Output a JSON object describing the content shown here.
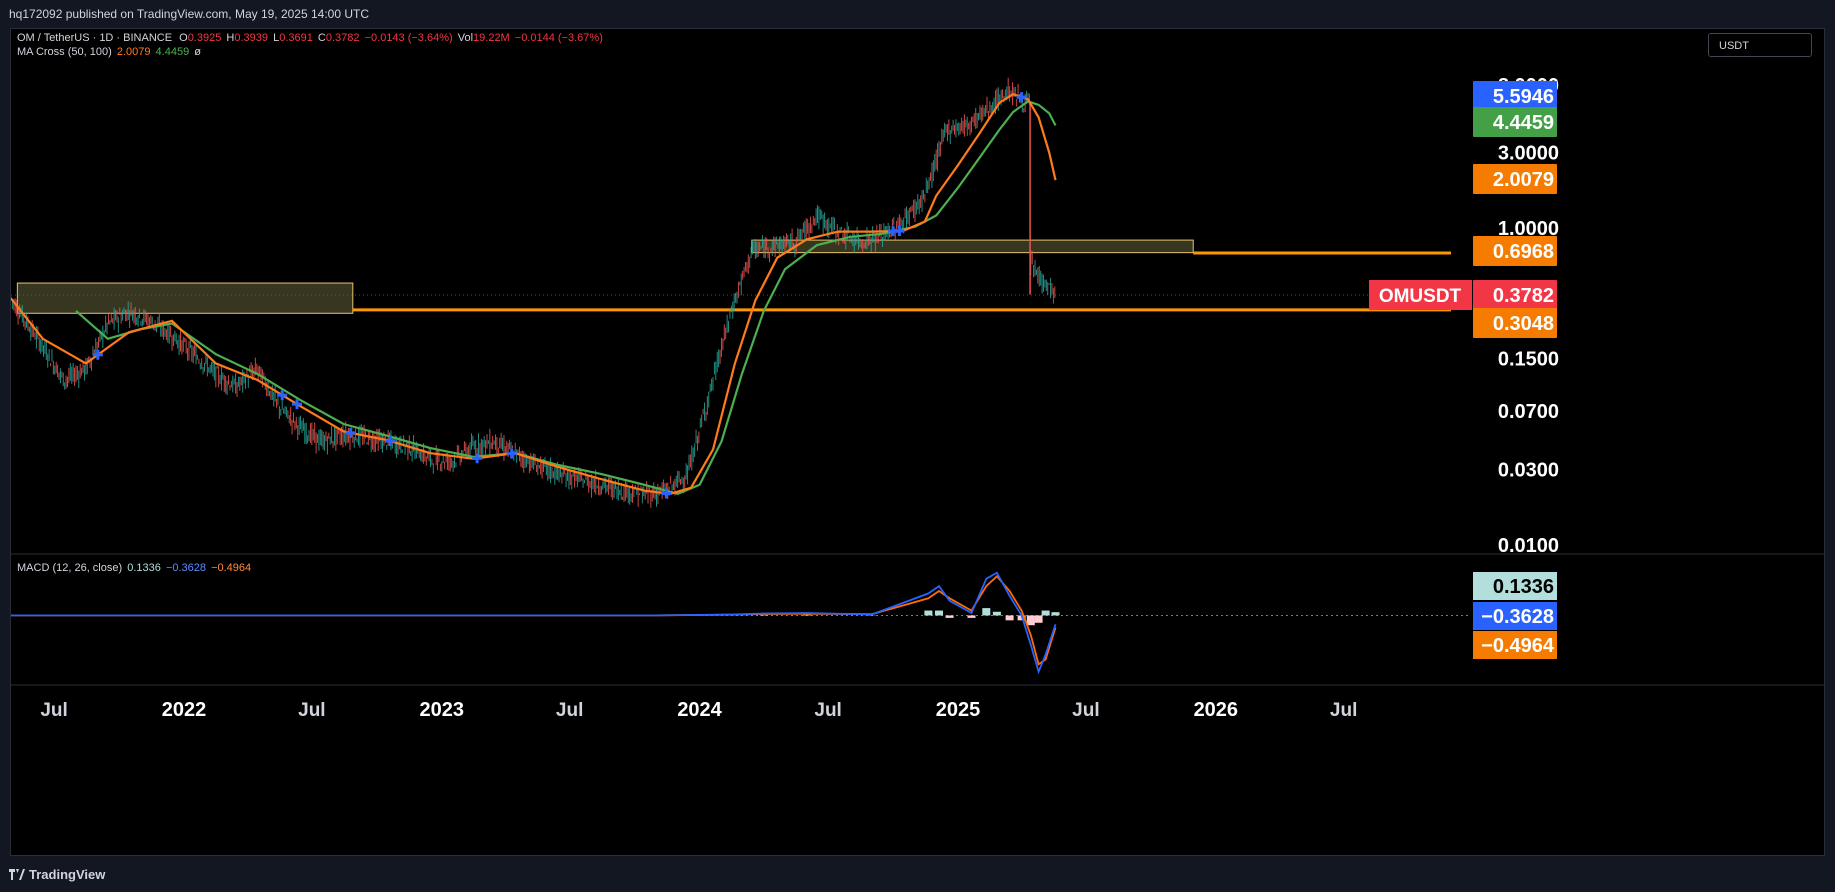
{
  "header": {
    "published_by": "hq172092 published on TradingView.com, May 19, 2025 14:00 UTC"
  },
  "legend": {
    "symbol": "OM / TetherUS · 1D · BINANCE",
    "open_label": "O",
    "open": "0.3925",
    "high_label": "H",
    "high": "0.3939",
    "low_label": "L",
    "low": "0.3691",
    "close_label": "C",
    "close": "0.3782",
    "change": "−0.0143 (−3.64%)",
    "vol_label": "Vol",
    "vol": "19.22M",
    "vol_change": "−0.0144 (−3.67%)",
    "ma_title": "MA Cross (50, 100)",
    "ma_fast": "2.0079",
    "ma_slow": "4.4459",
    "ma_extra": "ø",
    "macd_title": "MACD (12, 26, close)",
    "macd_hist": "0.1336",
    "macd_line": "−0.3628",
    "macd_signal": "−0.4964"
  },
  "currency_selector": "USDT",
  "footer": {
    "brand": "TradingView"
  },
  "colors": {
    "up": "#26a69a",
    "down": "#ef5350",
    "ma_fast": "#ff7b1a",
    "ma_slow": "#4caf50",
    "blue_tag": "#2962ff",
    "green_tag": "#43a047",
    "orange_tag": "#f57c00",
    "red_tag": "#f23645",
    "zone_fill": "#4a4a2c",
    "zone_border": "#e9c46a",
    "level_line": "#ff9800",
    "macd_line": "#2962ff",
    "signal_line": "#ff6d00",
    "hist_pos": "#b2dfdb",
    "hist_neg": "#ffcdd2"
  },
  "chart_data": {
    "type": "line",
    "title": "OM / TetherUS · 1D · BINANCE",
    "y_scale": "log",
    "y_tick_labels": [
      "8.0000",
      "3.0000",
      "1.0000",
      "0.1500",
      "0.0700",
      "0.0300",
      "0.0100"
    ],
    "y_ticks": [
      8,
      3,
      1,
      0.15,
      0.07,
      0.03,
      0.01
    ],
    "x_tick_labels": [
      "Jul",
      "2022",
      "Jul",
      "2023",
      "Jul",
      "2024",
      "Jul",
      "2025",
      "Jul",
      "2026",
      "Jul"
    ],
    "x_ticks": [
      "2021-07-01",
      "2022-01-01",
      "2022-07-01",
      "2023-01-01",
      "2023-07-01",
      "2024-01-01",
      "2024-07-01",
      "2025-01-01",
      "2025-07-01",
      "2026-01-01",
      "2026-07-01"
    ],
    "x_range": [
      "2021-05-01",
      "2026-11-30"
    ],
    "series": [
      {
        "name": "OMUSDT",
        "x": [
          "2021-05-01",
          "2021-06-15",
          "2021-07-15",
          "2021-08-15",
          "2021-09-15",
          "2021-10-15",
          "2021-11-15",
          "2021-12-15",
          "2022-01-15",
          "2022-02-15",
          "2022-03-15",
          "2022-04-15",
          "2022-05-15",
          "2022-06-15",
          "2022-07-15",
          "2022-08-15",
          "2022-09-15",
          "2022-10-15",
          "2022-11-15",
          "2022-12-15",
          "2023-01-15",
          "2023-02-15",
          "2023-03-15",
          "2023-04-15",
          "2023-05-15",
          "2023-06-15",
          "2023-07-15",
          "2023-08-15",
          "2023-09-15",
          "2023-10-15",
          "2023-11-15",
          "2023-12-15",
          "2024-01-15",
          "2024-02-15",
          "2024-03-15",
          "2024-04-15",
          "2024-05-15",
          "2024-06-15",
          "2024-07-15",
          "2024-08-15",
          "2024-09-15",
          "2024-10-15",
          "2024-11-15",
          "2024-12-15",
          "2025-01-15",
          "2025-02-15",
          "2025-03-15",
          "2025-04-01",
          "2025-04-13",
          "2025-04-14",
          "2025-04-25",
          "2025-05-10",
          "2025-05-19"
        ],
        "values": [
          0.36,
          0.18,
          0.11,
          0.13,
          0.25,
          0.3,
          0.26,
          0.21,
          0.16,
          0.12,
          0.1,
          0.13,
          0.075,
          0.055,
          0.045,
          0.05,
          0.048,
          0.045,
          0.042,
          0.035,
          0.034,
          0.042,
          0.045,
          0.038,
          0.032,
          0.028,
          0.026,
          0.024,
          0.022,
          0.021,
          0.022,
          0.028,
          0.09,
          0.3,
          0.72,
          0.78,
          0.82,
          1.2,
          0.95,
          0.82,
          0.9,
          1.1,
          1.6,
          4.2,
          4.5,
          5.8,
          7.5,
          6.4,
          6.0,
          0.6,
          0.5,
          0.42,
          0.3782
        ]
      },
      {
        "name": "MA 50",
        "x": [
          "2021-05-01",
          "2021-06-15",
          "2021-08-15",
          "2021-10-15",
          "2021-12-15",
          "2022-02-15",
          "2022-04-15",
          "2022-06-15",
          "2022-08-15",
          "2022-10-15",
          "2022-12-15",
          "2023-02-15",
          "2023-04-15",
          "2023-06-15",
          "2023-08-15",
          "2023-10-15",
          "2023-11-20",
          "2023-12-20",
          "2024-01-20",
          "2024-02-20",
          "2024-03-20",
          "2024-04-20",
          "2024-06-01",
          "2024-07-15",
          "2024-09-01",
          "2024-10-15",
          "2024-11-15",
          "2024-12-01",
          "2025-01-01",
          "2025-02-01",
          "2025-03-01",
          "2025-03-20",
          "2025-04-10",
          "2025-04-25",
          "2025-05-10",
          "2025-05-19"
        ],
        "values": [
          0.36,
          0.2,
          0.14,
          0.22,
          0.26,
          0.14,
          0.11,
          0.075,
          0.052,
          0.046,
          0.038,
          0.035,
          0.038,
          0.031,
          0.026,
          0.022,
          0.021,
          0.023,
          0.04,
          0.14,
          0.35,
          0.65,
          0.85,
          0.95,
          0.95,
          0.96,
          1.1,
          1.6,
          2.5,
          4.0,
          6.2,
          7.0,
          6.5,
          5.0,
          3.0,
          2.0079
        ]
      },
      {
        "name": "MA 100",
        "x": [
          "2021-08-01",
          "2021-09-15",
          "2021-11-01",
          "2021-12-15",
          "2022-02-15",
          "2022-04-15",
          "2022-06-15",
          "2022-08-15",
          "2022-10-15",
          "2022-12-15",
          "2023-02-15",
          "2023-04-15",
          "2023-06-15",
          "2023-08-15",
          "2023-10-15",
          "2023-12-01",
          "2024-01-01",
          "2024-02-01",
          "2024-03-01",
          "2024-04-01",
          "2024-05-01",
          "2024-06-15",
          "2024-08-01",
          "2024-09-15",
          "2024-11-01",
          "2024-12-01",
          "2025-01-01",
          "2025-02-01",
          "2025-03-01",
          "2025-03-20",
          "2025-04-10",
          "2025-04-25",
          "2025-05-10",
          "2025-05-19"
        ],
        "values": [
          0.3,
          0.2,
          0.23,
          0.25,
          0.16,
          0.12,
          0.082,
          0.058,
          0.049,
          0.041,
          0.036,
          0.038,
          0.032,
          0.028,
          0.024,
          0.021,
          0.024,
          0.045,
          0.12,
          0.3,
          0.55,
          0.78,
          0.88,
          0.92,
          1.02,
          1.2,
          1.8,
          2.8,
          4.2,
          5.4,
          6.3,
          6.0,
          5.3,
          4.4459
        ]
      }
    ],
    "zones": [
      {
        "from": "2021-05-10",
        "to": "2022-08-28",
        "low": 0.29,
        "high": 0.45
      },
      {
        "from": "2024-03-15",
        "to": "2025-11-30",
        "low": 0.7,
        "high": 0.84
      }
    ],
    "levels": [
      {
        "value": 0.3048,
        "label": "0.3048"
      },
      {
        "value": 0.6968,
        "label": "0.6968"
      }
    ],
    "price_tags": [
      {
        "value": 5.5946,
        "label": "5.5946"
      },
      {
        "value": 4.4459,
        "label": "4.4459"
      },
      {
        "value": 2.0079,
        "label": "2.0079"
      },
      {
        "value": 0.3782,
        "label": "0.3782",
        "name": "OMUSDT"
      },
      {
        "value": 0.3048,
        "label": "0.3048"
      },
      {
        "value": 0.6968,
        "label": "0.6968"
      }
    ],
    "cross_markers": [
      "2021-09-01",
      "2022-05-20",
      "2022-06-10",
      "2022-08-25",
      "2022-10-20",
      "2023-02-20",
      "2023-04-10",
      "2023-11-15",
      "2024-10-01",
      "2024-10-10",
      "2025-04-01"
    ],
    "macd": {
      "values": {
        "histogram": 0.1336,
        "macd": -0.3628,
        "signal": -0.4964
      },
      "x": [
        "2021-05-01",
        "2023-11-01",
        "2024-02-15",
        "2024-04-01",
        "2024-06-01",
        "2024-09-01",
        "2024-11-20",
        "2024-12-05",
        "2024-12-20",
        "2025-01-20",
        "2025-02-10",
        "2025-02-25",
        "2025-03-15",
        "2025-04-01",
        "2025-04-14",
        "2025-04-25",
        "2025-05-05",
        "2025-05-19"
      ],
      "macd_line": [
        0.0,
        0.0,
        0.04,
        0.08,
        0.1,
        0.04,
        0.9,
        1.2,
        0.6,
        0.1,
        1.5,
        1.75,
        0.8,
        0.0,
        -1.2,
        -2.3,
        -1.6,
        -0.3628
      ],
      "signal_line": [
        0.0,
        0.0,
        0.03,
        0.06,
        0.07,
        0.05,
        0.7,
        1.0,
        0.7,
        0.2,
        1.2,
        1.6,
        1.0,
        0.2,
        -0.8,
        -2.0,
        -1.8,
        -0.4964
      ],
      "histogram": [
        0.0,
        0.0,
        0.01,
        0.02,
        0.03,
        -0.01,
        0.2,
        0.2,
        -0.1,
        -0.1,
        0.3,
        0.15,
        -0.2,
        -0.2,
        -0.4,
        -0.3,
        0.2,
        0.1336
      ],
      "y_range": [
        -2.6,
        1.9
      ]
    }
  }
}
